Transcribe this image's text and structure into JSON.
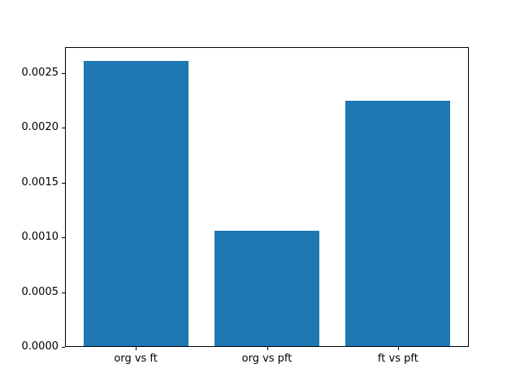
{
  "chart_data": {
    "type": "bar",
    "title": "",
    "xlabel": "",
    "ylabel": "",
    "categories": [
      "org vs ft",
      "org vs pft",
      "ft vs pft"
    ],
    "values": [
      0.0026,
      0.00105,
      0.00224
    ],
    "bar_color": "#1f77b4",
    "ylim": [
      0,
      0.002735
    ],
    "xlim": [
      -0.54,
      2.54
    ],
    "bar_width": 0.8,
    "grid": false,
    "legend": false,
    "yticks": [
      {
        "value": 0.0,
        "label": "0.0000"
      },
      {
        "value": 0.0005,
        "label": "0.0005"
      },
      {
        "value": 0.001,
        "label": "0.0010"
      },
      {
        "value": 0.0015,
        "label": "0.0015"
      },
      {
        "value": 0.002,
        "label": "0.0020"
      },
      {
        "value": 0.0025,
        "label": "0.0025"
      }
    ]
  },
  "figure": {
    "background": "#ffffff",
    "frame_color": "#000000",
    "text_color": "#000000"
  }
}
